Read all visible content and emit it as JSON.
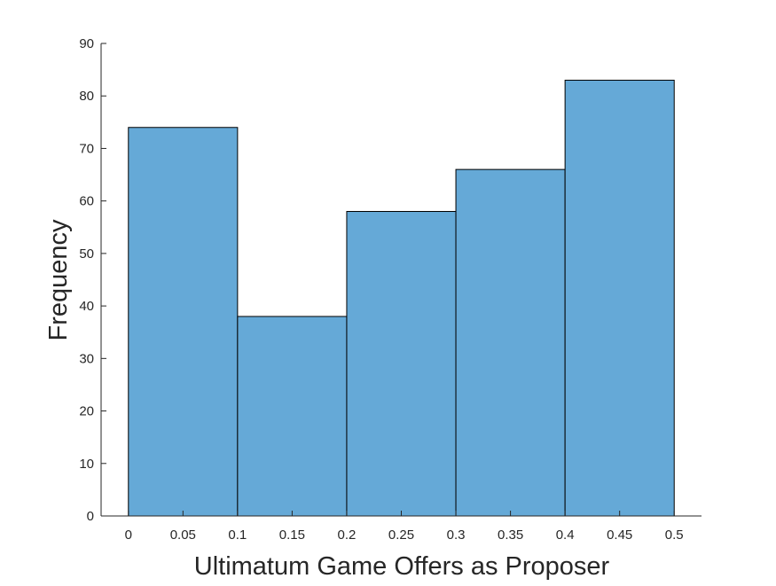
{
  "chart_data": {
    "type": "bar",
    "subtype": "histogram",
    "title": "",
    "xlabel": "Ultimatum Game Offers as Proposer",
    "ylabel": "Frequency",
    "bins": [
      {
        "start": 0.0,
        "end": 0.1,
        "value": 74
      },
      {
        "start": 0.1,
        "end": 0.2,
        "value": 38
      },
      {
        "start": 0.2,
        "end": 0.3,
        "value": 58
      },
      {
        "start": 0.3,
        "end": 0.4,
        "value": 66
      },
      {
        "start": 0.4,
        "end": 0.5,
        "value": 83
      }
    ],
    "xlim": [
      -0.025,
      0.525
    ],
    "ylim": [
      0,
      90
    ],
    "x_ticks": [
      "0",
      "0.05",
      "0.1",
      "0.15",
      "0.2",
      "0.25",
      "0.3",
      "0.35",
      "0.4",
      "0.45",
      "0.5"
    ],
    "x_tick_values": [
      0,
      0.05,
      0.1,
      0.15,
      0.2,
      0.25,
      0.3,
      0.35,
      0.4,
      0.45,
      0.5
    ],
    "y_ticks": [
      "0",
      "10",
      "20",
      "30",
      "40",
      "50",
      "60",
      "70",
      "80",
      "90"
    ],
    "y_tick_values": [
      0,
      10,
      20,
      30,
      40,
      50,
      60,
      70,
      80,
      90
    ],
    "grid": false,
    "legend": "none",
    "colors": {
      "bar_fill": "#65a9d7",
      "bar_edge": "#000000",
      "axis": "#262626"
    }
  }
}
